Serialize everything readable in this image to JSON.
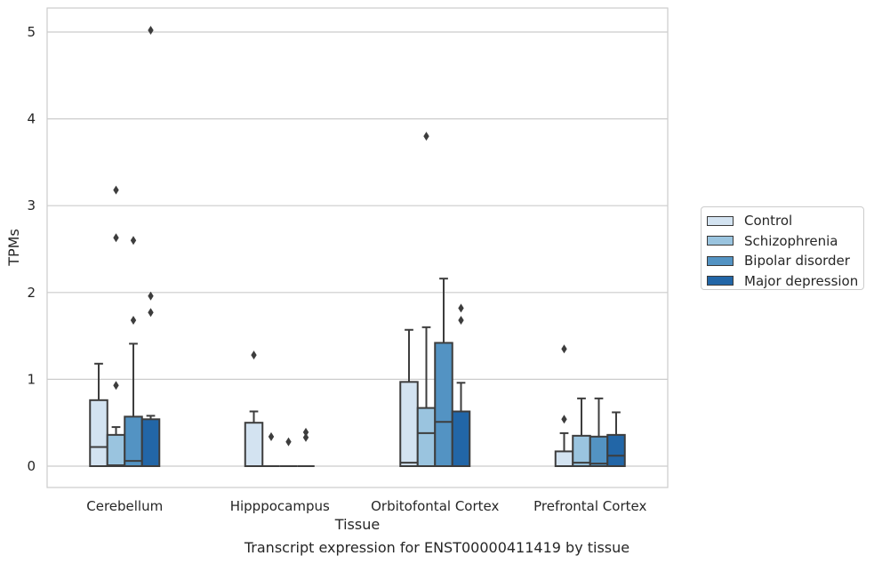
{
  "chart_data": {
    "type": "boxplot",
    "title": "",
    "caption": "Transcript expression for ENST00000411419 by tissue",
    "xlabel": "Tissue",
    "ylabel": "TPMs",
    "ylim": [
      -0.25,
      5.28
    ],
    "yticks": [
      0,
      1,
      2,
      3,
      4,
      5
    ],
    "grid": "horizontal",
    "legend_position": "right",
    "categories": [
      "Cerebellum",
      "Hipppocampus",
      "Orbitofontal Cortex",
      "Prefrontal Cortex"
    ],
    "series": [
      {
        "name": "Control",
        "color": "#d3e3f1",
        "boxes": [
          {
            "q1": 0.0,
            "median": 0.22,
            "q3": 0.76,
            "whisker_low": 0.0,
            "whisker_high": 1.18,
            "outliers": []
          },
          {
            "q1": 0.0,
            "median": 0.0,
            "q3": 0.5,
            "whisker_low": 0.0,
            "whisker_high": 0.63,
            "outliers": [
              1.28
            ]
          },
          {
            "q1": 0.0,
            "median": 0.04,
            "q3": 0.97,
            "whisker_low": 0.0,
            "whisker_high": 1.57,
            "outliers": []
          },
          {
            "q1": 0.0,
            "median": 0.0,
            "q3": 0.17,
            "whisker_low": 0.0,
            "whisker_high": 0.38,
            "outliers": [
              0.54,
              1.35
            ]
          }
        ]
      },
      {
        "name": "Schizophrenia",
        "color": "#9ac4df",
        "boxes": [
          {
            "q1": 0.0,
            "median": 0.01,
            "q3": 0.36,
            "whisker_low": 0.0,
            "whisker_high": 0.45,
            "outliers": [
              0.93,
              2.63,
              3.18
            ]
          },
          {
            "q1": 0.0,
            "median": 0.0,
            "q3": 0.0,
            "whisker_low": 0.0,
            "whisker_high": 0.0,
            "outliers": [
              0.34
            ]
          },
          {
            "q1": 0.0,
            "median": 0.38,
            "q3": 0.67,
            "whisker_low": 0.0,
            "whisker_high": 1.6,
            "outliers": [
              3.8
            ]
          },
          {
            "q1": 0.0,
            "median": 0.04,
            "q3": 0.35,
            "whisker_low": 0.0,
            "whisker_high": 0.78,
            "outliers": []
          }
        ]
      },
      {
        "name": "Bipolar disorder",
        "color": "#5393c3",
        "boxes": [
          {
            "q1": 0.0,
            "median": 0.06,
            "q3": 0.57,
            "whisker_low": 0.0,
            "whisker_high": 1.41,
            "outliers": [
              1.68,
              2.6
            ]
          },
          {
            "q1": 0.0,
            "median": 0.0,
            "q3": 0.0,
            "whisker_low": 0.0,
            "whisker_high": 0.0,
            "outliers": [
              0.28
            ]
          },
          {
            "q1": 0.0,
            "median": 0.51,
            "q3": 1.42,
            "whisker_low": 0.0,
            "whisker_high": 2.16,
            "outliers": []
          },
          {
            "q1": 0.0,
            "median": 0.03,
            "q3": 0.34,
            "whisker_low": 0.0,
            "whisker_high": 0.78,
            "outliers": []
          }
        ]
      },
      {
        "name": "Major depression",
        "color": "#2266a7",
        "boxes": [
          {
            "q1": 0.0,
            "median": 0.0,
            "q3": 0.54,
            "whisker_low": 0.0,
            "whisker_high": 0.58,
            "outliers": [
              1.77,
              1.96,
              5.02
            ]
          },
          {
            "q1": 0.0,
            "median": 0.0,
            "q3": 0.0,
            "whisker_low": 0.0,
            "whisker_high": 0.0,
            "outliers": [
              0.33,
              0.39
            ]
          },
          {
            "q1": 0.0,
            "median": 0.0,
            "q3": 0.63,
            "whisker_low": 0.0,
            "whisker_high": 0.96,
            "outliers": [
              1.68,
              1.82
            ]
          },
          {
            "q1": 0.0,
            "median": 0.12,
            "q3": 0.36,
            "whisker_low": 0.0,
            "whisker_high": 0.62,
            "outliers": []
          }
        ]
      }
    ]
  }
}
